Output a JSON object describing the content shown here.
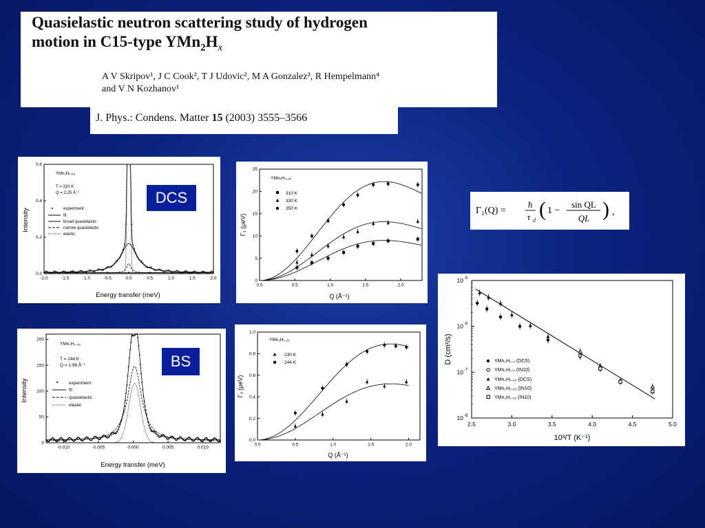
{
  "header": {
    "title_line1": "Quasielastic neutron scattering study of hydrogen",
    "title_line2_pre": "motion in C15-type YMn",
    "title_line2_sub": "2",
    "title_line2_mid": "H",
    "title_line2_x": "x",
    "authors_line1": "A V Skripov¹, J C Cook², T J Udovic², M A Gonzalez³, R Hempelmann⁴",
    "authors_line2": "and V N Kozhanov¹",
    "journal_pre": "J. Phys.: Condens.  Matter ",
    "journal_vol": "15",
    "journal_post": " (2003) 3555–3566"
  },
  "labels": {
    "dcs": "DCS",
    "bs": "BS"
  },
  "equation": {
    "lhs": "Γ₁(Q) =",
    "frac1_num": "ħ",
    "frac1_den": "τ",
    "frac1_den_sub": "d",
    "paren_open": "(",
    "one_minus": "1 −",
    "frac2_num": "sin QL",
    "frac2_den": "QL",
    "paren_close": ")",
    "tail": ","
  },
  "colors": {
    "background": "#0c2480",
    "label_box": "#0a1f9a"
  },
  "chart_data": [
    {
      "type": "scatter",
      "panel": "dcs-spectrum",
      "xlabel": "Energy transfer  (meV)",
      "ylabel": "Intensity",
      "xlim": [
        -2.0,
        2.0
      ],
      "ylim": [
        0.0,
        0.6
      ],
      "xticks": [
        "-2.0",
        "-1.5",
        "-1.0",
        "-0.5",
        "0.0",
        "0.5",
        "1.0",
        "1.5",
        "2.0"
      ],
      "yticks": [
        "0.0",
        "0.2",
        "0.4",
        "0.6"
      ],
      "annotations": [
        "YMn₂H₀.₆₅",
        "T = 310 K",
        "Q = 2.25 Å⁻¹"
      ],
      "legend": [
        "experiment",
        "fit",
        "broad quasielastic",
        "narrow quasielastic",
        "elastic"
      ],
      "legend_placement": "left"
    },
    {
      "type": "scatter",
      "panel": "dcs-gamma",
      "xlabel": "Q  (Å⁻¹)",
      "ylabel": "Γ₁  (μeV)",
      "xlim": [
        0.0,
        2.3
      ],
      "ylim": [
        0,
        25
      ],
      "xticks": [
        "0.0",
        "0.5",
        "1.0",
        "1.5",
        "2.0"
      ],
      "yticks": [
        "0",
        "5",
        "10",
        "15",
        "20",
        "25"
      ],
      "annotation": "YMn₂H₀.₆₅",
      "legend_placement": "top-left",
      "series": [
        {
          "name": "310 K",
          "marker": "square",
          "points": [
            [
              0.53,
              2.9
            ],
            [
              0.74,
              4.0
            ],
            [
              0.97,
              5.0
            ],
            [
              1.19,
              6.3
            ],
            [
              1.39,
              7.7
            ],
            [
              1.61,
              8.3
            ],
            [
              1.82,
              8.9
            ],
            [
              2.24,
              9.3
            ]
          ]
        },
        {
          "name": "330 K",
          "marker": "triangle",
          "points": [
            [
              0.53,
              4.1
            ],
            [
              0.74,
              5.8
            ],
            [
              0.97,
              7.8
            ],
            [
              1.19,
              9.8
            ],
            [
              1.39,
              11.0
            ],
            [
              1.61,
              12.8
            ],
            [
              1.82,
              13.0
            ],
            [
              2.24,
              13.3
            ]
          ]
        },
        {
          "name": "350 K",
          "marker": "circle",
          "points": [
            [
              0.53,
              6.6
            ],
            [
              0.74,
              10.0
            ],
            [
              0.97,
              13.4
            ],
            [
              1.19,
              17.0
            ],
            [
              1.39,
              19.2
            ],
            [
              1.61,
              21.5
            ],
            [
              1.82,
              21.7
            ],
            [
              2.24,
              21.5
            ]
          ]
        }
      ]
    },
    {
      "type": "scatter",
      "panel": "bs-spectrum",
      "xlabel": "Energy transfer  (meV)",
      "ylabel": "Intensity",
      "xlim": [
        -0.0125,
        0.0125
      ],
      "ylim": [
        0,
        210
      ],
      "xticks": [
        "-0.010",
        "-0.005",
        "0.000",
        "0.005",
        "0.010"
      ],
      "yticks": [
        "0",
        "50",
        "100",
        "150",
        "200"
      ],
      "annotations": [
        "YMn₂H₁.₂₆",
        "T = 244 K",
        "Q = 1.96 Å⁻¹"
      ],
      "legend": [
        "experiment",
        "fit",
        "quasielastic",
        "elastic"
      ],
      "legend_placement": "left"
    },
    {
      "type": "scatter",
      "panel": "bs-gamma",
      "xlabel": "Q  (Å⁻¹)",
      "ylabel": "Γ₁  (μeV)",
      "xlim": [
        0.0,
        2.15
      ],
      "ylim": [
        0.0,
        1.0
      ],
      "xticks": [
        "0.0",
        "0.5",
        "1.0",
        "1.5",
        "2.0"
      ],
      "yticks": [
        "0.0",
        "0.2",
        "0.4",
        "0.6",
        "0.8",
        "1.0"
      ],
      "annotation": "YMn₂H₁.₂₆",
      "legend_placement": "top-left",
      "series": [
        {
          "name": "230 K",
          "marker": "triangle",
          "points": [
            [
              0.5,
              0.13
            ],
            [
              0.86,
              0.24
            ],
            [
              1.18,
              0.36
            ],
            [
              1.45,
              0.54
            ],
            [
              1.68,
              0.5
            ],
            [
              1.97,
              0.54
            ]
          ]
        },
        {
          "name": "244 K",
          "marker": "circle",
          "points": [
            [
              0.5,
              0.25
            ],
            [
              0.86,
              0.48
            ],
            [
              1.18,
              0.7
            ],
            [
              1.45,
              0.82
            ],
            [
              1.68,
              0.88
            ],
            [
              1.83,
              0.87
            ],
            [
              1.97,
              0.86
            ]
          ]
        }
      ]
    },
    {
      "type": "scatter",
      "panel": "diffusion-arrhenius",
      "xlabel": "10³/T  (K⁻¹)",
      "ylabel": "D  (cm²/s)",
      "xlim": [
        2.5,
        5.0
      ],
      "ylog": true,
      "ylim": [
        1e-08,
        1e-05
      ],
      "xticks": [
        "2.5",
        "3.0",
        "3.5",
        "4.0",
        "4.5",
        "5.0"
      ],
      "ytick_base": "10",
      "ytick_exp": [
        "-5",
        "-6",
        "-7",
        "-8"
      ],
      "legend_placement": "bottom-left",
      "fit_line": [
        [
          2.55,
          6.5e-06
        ],
        [
          4.78,
          2.6e-08
        ]
      ],
      "series": [
        {
          "name": "YMn₂H₀.₄ (DCS)",
          "marker": "circle",
          "points": [
            [
              2.57,
              3.2e-06
            ],
            [
              2.69,
              2.4e-06
            ],
            [
              2.86,
              1.6e-06
            ],
            [
              3.1,
              1e-06
            ],
            [
              3.45,
              5e-07
            ],
            [
              3.85,
              2.2e-07
            ],
            [
              4.35,
              6.5e-08
            ]
          ]
        },
        {
          "name": "YMn₂H₀.₄ (IN10)",
          "marker": "circle-open",
          "points": [
            [
              3.85,
              2.3e-07
            ],
            [
              4.1,
              1.2e-07
            ]
          ]
        },
        {
          "name": "YMn₂H₀.₆₅ (DCS)",
          "marker": "triangle",
          "points": [
            [
              2.6,
              5.4e-06
            ],
            [
              2.71,
              4.3e-06
            ],
            [
              2.86,
              3.2e-06
            ],
            [
              3.0,
              1.8e-06
            ],
            [
              3.23,
              1.05e-06
            ],
            [
              3.45,
              6e-07
            ]
          ]
        },
        {
          "name": "YMn₂H₀.₆₅ (IN10)",
          "marker": "triangle-open",
          "points": [
            [
              3.85,
              2.8e-07
            ],
            [
              4.1,
              1.35e-07
            ],
            [
              4.75,
              4.8e-08
            ]
          ]
        },
        {
          "name": "YMn₂H₁.₂₆ (IN10)",
          "marker": "square-open",
          "points": [
            [
              4.1,
              1.2e-07
            ],
            [
              4.35,
              6.2e-08
            ],
            [
              4.75,
              3.8e-08
            ]
          ]
        }
      ]
    }
  ]
}
